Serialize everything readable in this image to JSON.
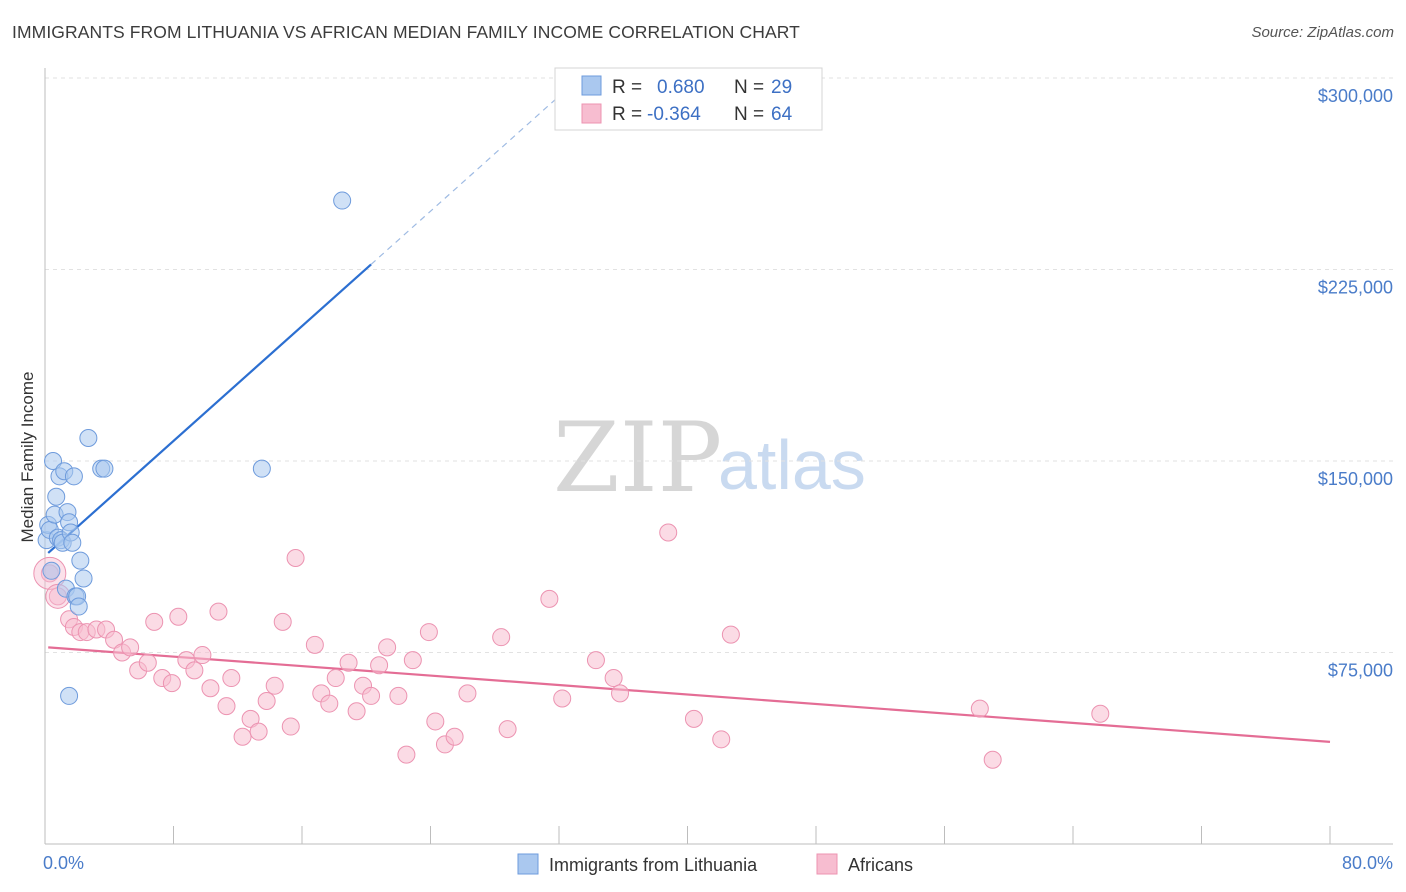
{
  "title": "IMMIGRANTS FROM LITHUANIA VS AFRICAN MEDIAN FAMILY INCOME CORRELATION CHART",
  "source": "Source: ZipAtlas.com",
  "watermark": {
    "zip": "ZIP",
    "atlas": "atlas"
  },
  "colors": {
    "blue_fill": "#aac8ef",
    "blue_stroke": "#6e9bdc",
    "blue_line": "#2c6fd1",
    "pink_fill": "#f7bdd0",
    "pink_stroke": "#ec93b1",
    "pink_line": "#e46d95",
    "grid": "#e2e2e2",
    "tick_text": "#4a7cc9"
  },
  "chart_data": {
    "type": "scatter",
    "title": "IMMIGRANTS FROM LITHUANIA VS AFRICAN MEDIAN FAMILY INCOME CORRELATION CHART",
    "xlabel": "",
    "ylabel": "Median Family Income",
    "xlim": [
      0,
      80
    ],
    "ylim": [
      0,
      300000
    ],
    "x_tick_labels": [
      "0.0%",
      "80.0%"
    ],
    "y_ticks": [
      75000,
      150000,
      225000,
      300000
    ],
    "y_tick_labels": [
      "$75,000",
      "$150,000",
      "$225,000",
      "$300,000"
    ],
    "legend": {
      "entries": [
        {
          "r_label": "R =",
          "r_value": "0.680",
          "n_label": "N =",
          "n_value": "29"
        },
        {
          "r_label": "R =",
          "r_value": "-0.364",
          "n_label": "N =",
          "n_value": "64"
        }
      ]
    },
    "series": [
      {
        "name": "Immigrants from Lithuania",
        "color": "#aac8ef",
        "points": [
          [
            0.1,
            119000
          ],
          [
            0.2,
            125000
          ],
          [
            0.3,
            123000
          ],
          [
            0.4,
            107000
          ],
          [
            0.5,
            150000
          ],
          [
            0.6,
            129000
          ],
          [
            0.7,
            136000
          ],
          [
            0.8,
            120000
          ],
          [
            0.9,
            144000
          ],
          [
            1.0,
            119000
          ],
          [
            1.1,
            118000
          ],
          [
            1.2,
            146000
          ],
          [
            1.3,
            100000
          ],
          [
            1.4,
            130000
          ],
          [
            1.5,
            126000
          ],
          [
            1.6,
            122000
          ],
          [
            1.7,
            118000
          ],
          [
            1.8,
            144000
          ],
          [
            1.9,
            97000
          ],
          [
            2.0,
            97000
          ],
          [
            2.1,
            93000
          ],
          [
            2.2,
            111000
          ],
          [
            2.4,
            104000
          ],
          [
            2.7,
            159000
          ],
          [
            3.5,
            147000
          ],
          [
            3.7,
            147000
          ],
          [
            13.5,
            147000
          ],
          [
            18.5,
            252000
          ],
          [
            1.5,
            58000
          ]
        ],
        "trendline": {
          "x": [
            0.2,
            20.3
          ],
          "y": [
            114000,
            227000
          ],
          "dashed_extension": {
            "x": [
              20.3,
              33.8
            ],
            "y": [
              227000,
              303000
            ]
          }
        }
      },
      {
        "name": "Africans",
        "color": "#f7bdd0",
        "points": [
          [
            0.3,
            106000
          ],
          [
            0.8,
            97000
          ],
          [
            1.5,
            88000
          ],
          [
            1.8,
            85000
          ],
          [
            2.2,
            83000
          ],
          [
            2.6,
            83000
          ],
          [
            3.2,
            84000
          ],
          [
            3.8,
            84000
          ],
          [
            4.3,
            80000
          ],
          [
            4.8,
            75000
          ],
          [
            5.3,
            77000
          ],
          [
            5.8,
            68000
          ],
          [
            6.4,
            71000
          ],
          [
            6.8,
            87000
          ],
          [
            7.3,
            65000
          ],
          [
            7.9,
            63000
          ],
          [
            8.3,
            89000
          ],
          [
            8.8,
            72000
          ],
          [
            9.3,
            68000
          ],
          [
            9.8,
            74000
          ],
          [
            10.3,
            61000
          ],
          [
            10.8,
            91000
          ],
          [
            11.3,
            54000
          ],
          [
            11.6,
            65000
          ],
          [
            12.3,
            42000
          ],
          [
            12.8,
            49000
          ],
          [
            13.3,
            44000
          ],
          [
            13.8,
            56000
          ],
          [
            14.3,
            62000
          ],
          [
            14.8,
            87000
          ],
          [
            15.3,
            46000
          ],
          [
            15.6,
            112000
          ],
          [
            16.8,
            78000
          ],
          [
            17.2,
            59000
          ],
          [
            17.7,
            55000
          ],
          [
            18.1,
            65000
          ],
          [
            18.9,
            71000
          ],
          [
            19.4,
            52000
          ],
          [
            19.8,
            62000
          ],
          [
            20.3,
            58000
          ],
          [
            20.8,
            70000
          ],
          [
            21.3,
            77000
          ],
          [
            22.0,
            58000
          ],
          [
            22.5,
            35000
          ],
          [
            22.9,
            72000
          ],
          [
            23.9,
            83000
          ],
          [
            24.3,
            48000
          ],
          [
            24.9,
            39000
          ],
          [
            25.5,
            42000
          ],
          [
            26.3,
            59000
          ],
          [
            28.4,
            81000
          ],
          [
            28.8,
            45000
          ],
          [
            31.4,
            96000
          ],
          [
            32.2,
            57000
          ],
          [
            34.3,
            72000
          ],
          [
            35.4,
            65000
          ],
          [
            35.8,
            59000
          ],
          [
            38.8,
            122000
          ],
          [
            40.4,
            49000
          ],
          [
            42.1,
            41000
          ],
          [
            42.7,
            82000
          ],
          [
            58.2,
            53000
          ],
          [
            59.0,
            33000
          ],
          [
            65.7,
            51000
          ]
        ],
        "trendline": {
          "x": [
            0.2,
            80
          ],
          "y": [
            77000,
            40000
          ]
        }
      }
    ]
  },
  "bottom_legend": {
    "items": [
      {
        "label": "Immigrants from Lithuania"
      },
      {
        "label": "Africans"
      }
    ]
  }
}
